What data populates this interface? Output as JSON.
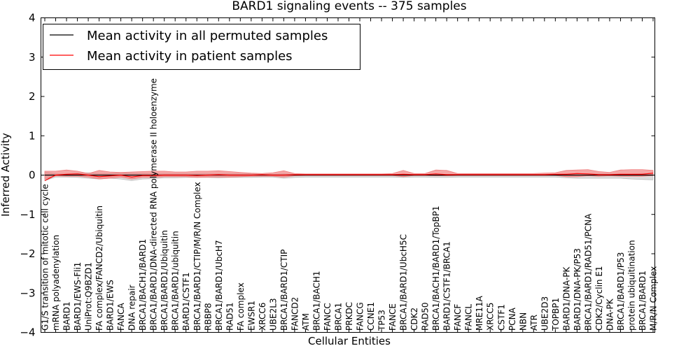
{
  "chart_data": {
    "type": "line",
    "title": "BARD1 signaling events -- 375 samples",
    "xlabel": "Cellular Entities",
    "ylabel": "Inferred Activity",
    "ylim": [
      -4,
      4
    ],
    "yticks": [
      -4,
      -3,
      -2,
      -1,
      0,
      1,
      2,
      3,
      4
    ],
    "ytick_labels": [
      "−4",
      "−3",
      "−2",
      "−1",
      "0",
      "1",
      "2",
      "3",
      "4"
    ],
    "legend_position": "top-left",
    "categories": [
      "G1/S transition of mitotic cell cycle",
      "mRNA polyadenylation",
      "BARD1",
      "BARD1/EWS-Fli1",
      "UniProt:Q9BZD1",
      "FA complex/FANCD2/Ubiquitin",
      "BARD1/EWS",
      "FANCA",
      "DNA repair",
      "BRCA1/BACH1/BARD1",
      "BRCA1/BARD1/DNA-directed RNA polymerase II holoenzyme",
      "BRCA1/BARD1/Ubiquitin",
      "BRCA1/BARD1/ubiquitin",
      "BARD1/CSTF1",
      "BRCA1/BARD1/CTIP/M/R/N Complex",
      "RBBP8",
      "BRCA1/BARD1/UbcH7",
      "RAD51",
      "FA complex",
      "EWSR1",
      "XRCC6",
      "UBE2L3",
      "BRCA1/BARD1/CTIP",
      "FANCD2",
      "ATM",
      "BRCA1/BACH1",
      "FANCC",
      "BRCA1",
      "PRKDC",
      "FANCG",
      "CCNE1",
      "TP53",
      "FANCE",
      "BRCA1/BARD1/UbcH5C",
      "CDK2",
      "RAD50",
      "BRCA1/BACH1/BARD1/TopBP1",
      "BARD1/CSTF1/BRCA1",
      "FANCF",
      "FANCL",
      "MRE11A",
      "XRCC5",
      "CSTF1",
      "PCNA",
      "NBN",
      "ATR",
      "UBE2D3",
      "TOPBP1",
      "BARD1/DNA-PK",
      "BARD1/DNA-PK/P53",
      "BRCA1/BARD1/RAD51/PCNA",
      "CDK2/Cyclin E1",
      "DNA-PK",
      "BRCA1/BARD1/P53",
      "protein ubiquitination",
      "BRCA1/BARD1",
      "M/R/N Complex"
    ],
    "series": [
      {
        "name": "Mean activity in all permuted samples",
        "color": "#000000",
        "band_color": "#bfbfbf",
        "values": [
          0.0,
          0.0,
          0.0,
          0.0,
          0.0,
          0.0,
          0.0,
          0.0,
          0.0,
          0.0,
          0.0,
          0.0,
          0.0,
          0.0,
          0.0,
          0.0,
          0.0,
          0.0,
          0.0,
          0.0,
          0.0,
          0.0,
          0.0,
          0.0,
          0.0,
          0.0,
          0.0,
          0.0,
          0.0,
          0.0,
          0.0,
          0.0,
          0.0,
          0.0,
          0.0,
          0.0,
          0.0,
          0.0,
          0.0,
          0.0,
          0.0,
          0.0,
          0.0,
          0.0,
          0.0,
          0.0,
          0.0,
          0.0,
          0.0,
          0.0,
          0.0,
          0.0,
          0.0,
          0.0,
          0.0,
          0.0,
          0.0
        ],
        "lower": [
          -0.14,
          -0.05,
          -0.05,
          -0.06,
          -0.08,
          -0.1,
          -0.08,
          -0.1,
          -0.14,
          -0.1,
          -0.09,
          -0.07,
          -0.07,
          -0.06,
          -0.06,
          -0.06,
          -0.07,
          -0.06,
          -0.06,
          -0.06,
          -0.05,
          -0.05,
          -0.08,
          -0.06,
          -0.05,
          -0.05,
          -0.05,
          -0.05,
          -0.05,
          -0.05,
          -0.05,
          -0.05,
          -0.05,
          -0.06,
          -0.05,
          -0.05,
          -0.06,
          -0.06,
          -0.05,
          -0.05,
          -0.05,
          -0.05,
          -0.05,
          -0.05,
          -0.05,
          -0.05,
          -0.05,
          -0.05,
          -0.07,
          -0.08,
          -0.08,
          -0.08,
          -0.08,
          -0.08,
          -0.1,
          -0.11,
          -0.12
        ],
        "upper": [
          0.08,
          0.03,
          0.03,
          0.05,
          0.06,
          0.04,
          0.04,
          0.06,
          0.05,
          0.04,
          0.03,
          0.03,
          0.03,
          0.03,
          0.03,
          0.03,
          0.03,
          0.03,
          0.03,
          0.03,
          0.02,
          0.02,
          0.03,
          0.02,
          0.02,
          0.02,
          0.02,
          0.02,
          0.02,
          0.02,
          0.02,
          0.02,
          0.02,
          0.02,
          0.02,
          0.02,
          0.02,
          0.02,
          0.02,
          0.02,
          0.02,
          0.02,
          0.02,
          0.02,
          0.02,
          0.02,
          0.02,
          0.02,
          0.03,
          0.03,
          0.03,
          0.03,
          0.03,
          0.03,
          0.03,
          0.04,
          0.04
        ]
      },
      {
        "name": "Mean activity in patient samples",
        "color": "#ff0000",
        "band_color": "#f08080",
        "values": [
          -0.14,
          0.0,
          0.02,
          0.03,
          0.0,
          -0.04,
          -0.02,
          0.0,
          -0.05,
          -0.01,
          -0.01,
          0.0,
          0.0,
          0.0,
          -0.01,
          0.0,
          0.01,
          0.0,
          0.0,
          0.0,
          0.01,
          0.0,
          0.0,
          0.01,
          0.01,
          0.01,
          0.01,
          0.01,
          0.01,
          0.01,
          0.01,
          0.01,
          0.01,
          0.02,
          0.01,
          0.01,
          0.03,
          0.01,
          0.01,
          0.01,
          0.01,
          0.01,
          0.01,
          0.01,
          0.01,
          0.01,
          0.01,
          0.02,
          0.02,
          0.04,
          0.03,
          0.01,
          0.01,
          0.02,
          0.02,
          0.02,
          0.05
        ],
        "lower": [
          -0.1,
          -0.02,
          -0.03,
          -0.03,
          -0.05,
          -0.1,
          -0.08,
          -0.05,
          -0.1,
          -0.06,
          -0.06,
          -0.04,
          -0.04,
          -0.04,
          -0.06,
          -0.05,
          -0.05,
          -0.05,
          -0.04,
          -0.03,
          -0.03,
          -0.03,
          -0.05,
          -0.02,
          -0.01,
          -0.01,
          -0.01,
          -0.01,
          -0.01,
          -0.01,
          -0.01,
          -0.01,
          -0.01,
          -0.04,
          -0.01,
          -0.01,
          -0.02,
          -0.02,
          -0.01,
          -0.01,
          -0.01,
          -0.01,
          -0.01,
          -0.01,
          -0.01,
          -0.01,
          -0.01,
          -0.01,
          -0.04,
          -0.04,
          -0.02,
          -0.03,
          -0.02,
          -0.03,
          -0.03,
          -0.03,
          -0.01
        ],
        "upper": [
          0.1,
          0.1,
          0.13,
          0.1,
          0.04,
          0.12,
          0.08,
          0.07,
          0.08,
          0.09,
          0.1,
          0.1,
          0.08,
          0.08,
          0.1,
          0.1,
          0.11,
          0.09,
          0.07,
          0.05,
          0.04,
          0.06,
          0.11,
          0.04,
          0.03,
          0.03,
          0.03,
          0.03,
          0.03,
          0.03,
          0.03,
          0.03,
          0.04,
          0.12,
          0.04,
          0.04,
          0.13,
          0.12,
          0.04,
          0.04,
          0.04,
          0.04,
          0.04,
          0.04,
          0.04,
          0.04,
          0.05,
          0.06,
          0.12,
          0.13,
          0.14,
          0.09,
          0.07,
          0.13,
          0.14,
          0.14,
          0.12
        ]
      }
    ]
  }
}
